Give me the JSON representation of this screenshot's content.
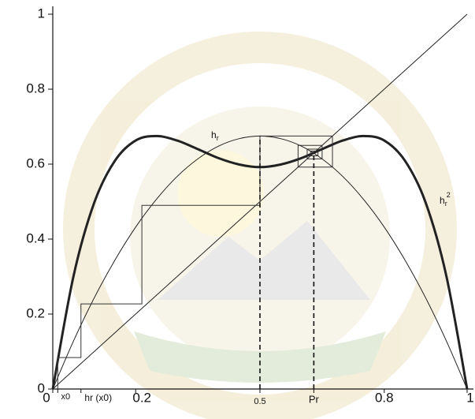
{
  "chart_data": {
    "type": "line",
    "x": [
      0,
      0.05,
      0.1,
      0.15,
      0.2,
      0.25,
      0.3,
      0.35,
      0.4,
      0.45,
      0.5,
      0.55,
      0.6,
      0.65,
      0.7,
      0.75,
      0.8,
      0.85,
      0.9,
      0.95,
      1
    ],
    "series": [
      {
        "name": "h",
        "subscript": "r",
        "color": "#222",
        "width": 1,
        "values": [
          0,
          0.128,
          0.243,
          0.344,
          0.432,
          0.506,
          0.567,
          0.614,
          0.648,
          0.668,
          0.675,
          0.668,
          0.648,
          0.614,
          0.567,
          0.506,
          0.432,
          0.344,
          0.243,
          0.128,
          0
        ]
      },
      {
        "name": "h",
        "subscript": "r",
        "superscript": "2",
        "color": "#111",
        "width": 3,
        "values": [
          0,
          0.301,
          0.497,
          0.609,
          0.663,
          0.675,
          0.663,
          0.64,
          0.616,
          0.599,
          0.592,
          0.599,
          0.616,
          0.64,
          0.663,
          0.675,
          0.663,
          0.609,
          0.497,
          0.301,
          0
        ]
      },
      {
        "color": "#222",
        "width": 1,
        "values": [
          0,
          0.05,
          0.1,
          0.15,
          0.2,
          0.25,
          0.3,
          0.35,
          0.4,
          0.45,
          0.5,
          0.55,
          0.6,
          0.65,
          0.7,
          0.75,
          0.8,
          0.85,
          0.9,
          0.95,
          1
        ]
      }
    ],
    "cobweb": {
      "color": "#333",
      "x": [
        0.012,
        0.012,
        0.068,
        0.068,
        0.215,
        0.215,
        0.5,
        0.5,
        0.675,
        0.675,
        0.592,
        0.592,
        0.65,
        0.65,
        0.614,
        0.614,
        0.64,
        0.64,
        0.622,
        0.622,
        0.635
      ],
      "y": [
        0,
        0.084,
        0.084,
        0.227,
        0.227,
        0.49,
        0.49,
        0.675,
        0.675,
        0.592,
        0.592,
        0.65,
        0.65,
        0.614,
        0.614,
        0.64,
        0.64,
        0.622,
        0.622,
        0.635,
        0.635
      ]
    },
    "dashed": [
      {
        "x": 0.5,
        "y": 0.675
      },
      {
        "x": 0.63,
        "y": 0.63
      }
    ],
    "xlim": [
      0,
      1
    ],
    "ylim": [
      0,
      1
    ],
    "xticks": [
      0,
      {
        "value": 0.012,
        "label": "x0"
      },
      {
        "value": 0.068,
        "label": "hr (x0)"
      },
      0.2,
      0.5,
      {
        "value": 0.63,
        "label": "Pr"
      },
      0.8,
      1
    ],
    "yticks": [
      0,
      0.2,
      0.4,
      0.6,
      0.8,
      1
    ]
  }
}
